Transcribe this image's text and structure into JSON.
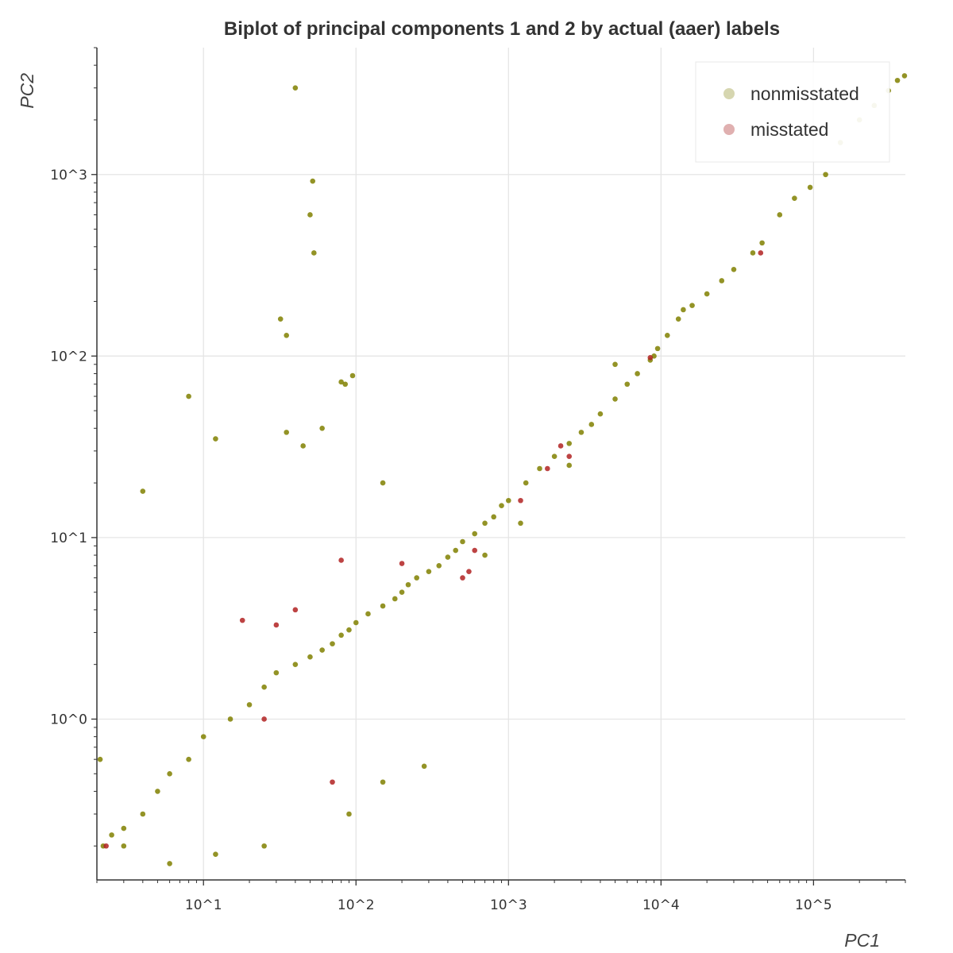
{
  "chart_data": {
    "type": "scatter",
    "title": "Biplot of principal components 1 and 2 by actual (aaer) labels",
    "xlabel": "PC1",
    "ylabel": "PC2",
    "xscale": "log",
    "yscale": "log",
    "xlim": [
      2,
      400000
    ],
    "ylim": [
      0.13,
      5000
    ],
    "grid": true,
    "legend_position": "top-right",
    "x_ticks": [
      {
        "value": 10,
        "label": "10^1"
      },
      {
        "value": 100,
        "label": "10^2"
      },
      {
        "value": 1000,
        "label": "10^3"
      },
      {
        "value": 10000,
        "label": "10^4"
      },
      {
        "value": 100000,
        "label": "10^5"
      }
    ],
    "y_ticks": [
      {
        "value": 1,
        "label": "10^0"
      },
      {
        "value": 10,
        "label": "10^1"
      },
      {
        "value": 100,
        "label": "10^2"
      },
      {
        "value": 1000,
        "label": "10^3"
      }
    ],
    "series": [
      {
        "name": "nonmisstated",
        "color": "#808000",
        "legend_color": "#d6d6b0",
        "points": [
          [
            395000,
            3500
          ],
          [
            355000,
            3300
          ],
          [
            310000,
            2900
          ],
          [
            250000,
            2400
          ],
          [
            200000,
            2000
          ],
          [
            150000,
            1500
          ],
          [
            120000,
            1000
          ],
          [
            95000,
            850
          ],
          [
            75000,
            740
          ],
          [
            60000,
            600
          ],
          [
            46000,
            420
          ],
          [
            40000,
            370
          ],
          [
            30000,
            300
          ],
          [
            25000,
            260
          ],
          [
            20000,
            220
          ],
          [
            16000,
            190
          ],
          [
            13000,
            160
          ],
          [
            11000,
            130
          ],
          [
            9500,
            110
          ],
          [
            8500,
            95
          ],
          [
            7000,
            80
          ],
          [
            6000,
            70
          ],
          [
            5000,
            58
          ],
          [
            4000,
            48
          ],
          [
            3500,
            42
          ],
          [
            3000,
            38
          ],
          [
            2500,
            33
          ],
          [
            2000,
            28
          ],
          [
            1600,
            24
          ],
          [
            1300,
            20
          ],
          [
            1000,
            16
          ],
          [
            900,
            15
          ],
          [
            800,
            13
          ],
          [
            700,
            12
          ],
          [
            600,
            10.5
          ],
          [
            500,
            9.5
          ],
          [
            450,
            8.5
          ],
          [
            400,
            7.8
          ],
          [
            350,
            7
          ],
          [
            300,
            6.5
          ],
          [
            250,
            6
          ],
          [
            220,
            5.5
          ],
          [
            200,
            5
          ],
          [
            180,
            4.6
          ],
          [
            150,
            4.2
          ],
          [
            120,
            3.8
          ],
          [
            100,
            3.4
          ],
          [
            90,
            3.1
          ],
          [
            80,
            2.9
          ],
          [
            70,
            2.6
          ],
          [
            60,
            2.4
          ],
          [
            50,
            2.2
          ],
          [
            40,
            2
          ],
          [
            30,
            1.8
          ],
          [
            25,
            1.5
          ],
          [
            20,
            1.2
          ],
          [
            15,
            1
          ],
          [
            10,
            0.8
          ],
          [
            8,
            0.6
          ],
          [
            6,
            0.5
          ],
          [
            5,
            0.4
          ],
          [
            4,
            0.3
          ],
          [
            3,
            0.25
          ],
          [
            2.2,
            0.2
          ],
          [
            2.5,
            0.23
          ],
          [
            40,
            3000
          ],
          [
            52,
            920
          ],
          [
            50,
            600
          ],
          [
            53,
            370
          ],
          [
            32,
            160
          ],
          [
            35,
            130
          ],
          [
            80,
            72
          ],
          [
            85,
            70
          ],
          [
            95,
            78
          ],
          [
            8,
            60
          ],
          [
            12,
            35
          ],
          [
            4,
            18
          ],
          [
            35,
            38
          ],
          [
            45,
            32
          ],
          [
            60,
            40
          ],
          [
            150,
            20
          ],
          [
            700,
            8
          ],
          [
            1200,
            12
          ],
          [
            5000,
            90
          ],
          [
            9000,
            100
          ],
          [
            14000,
            180
          ],
          [
            2500,
            25
          ],
          [
            280,
            0.55
          ],
          [
            150,
            0.45
          ],
          [
            90,
            0.3
          ],
          [
            25,
            0.2
          ],
          [
            12,
            0.18
          ],
          [
            6,
            0.16
          ],
          [
            3,
            0.2
          ],
          [
            2.1,
            0.6
          ]
        ]
      },
      {
        "name": "misstated",
        "color": "#b22222",
        "legend_color": "#e0b0b0",
        "points": [
          [
            45000,
            370
          ],
          [
            8500,
            98
          ],
          [
            2200,
            32
          ],
          [
            2500,
            28
          ],
          [
            1800,
            24
          ],
          [
            1200,
            16
          ],
          [
            600,
            8.5
          ],
          [
            550,
            6.5
          ],
          [
            500,
            6
          ],
          [
            200,
            7.2
          ],
          [
            80,
            7.5
          ],
          [
            40,
            4
          ],
          [
            25,
            1
          ],
          [
            70,
            0.45
          ],
          [
            2.3,
            0.2
          ],
          [
            18,
            3.5
          ],
          [
            30,
            3.3
          ]
        ]
      }
    ]
  }
}
